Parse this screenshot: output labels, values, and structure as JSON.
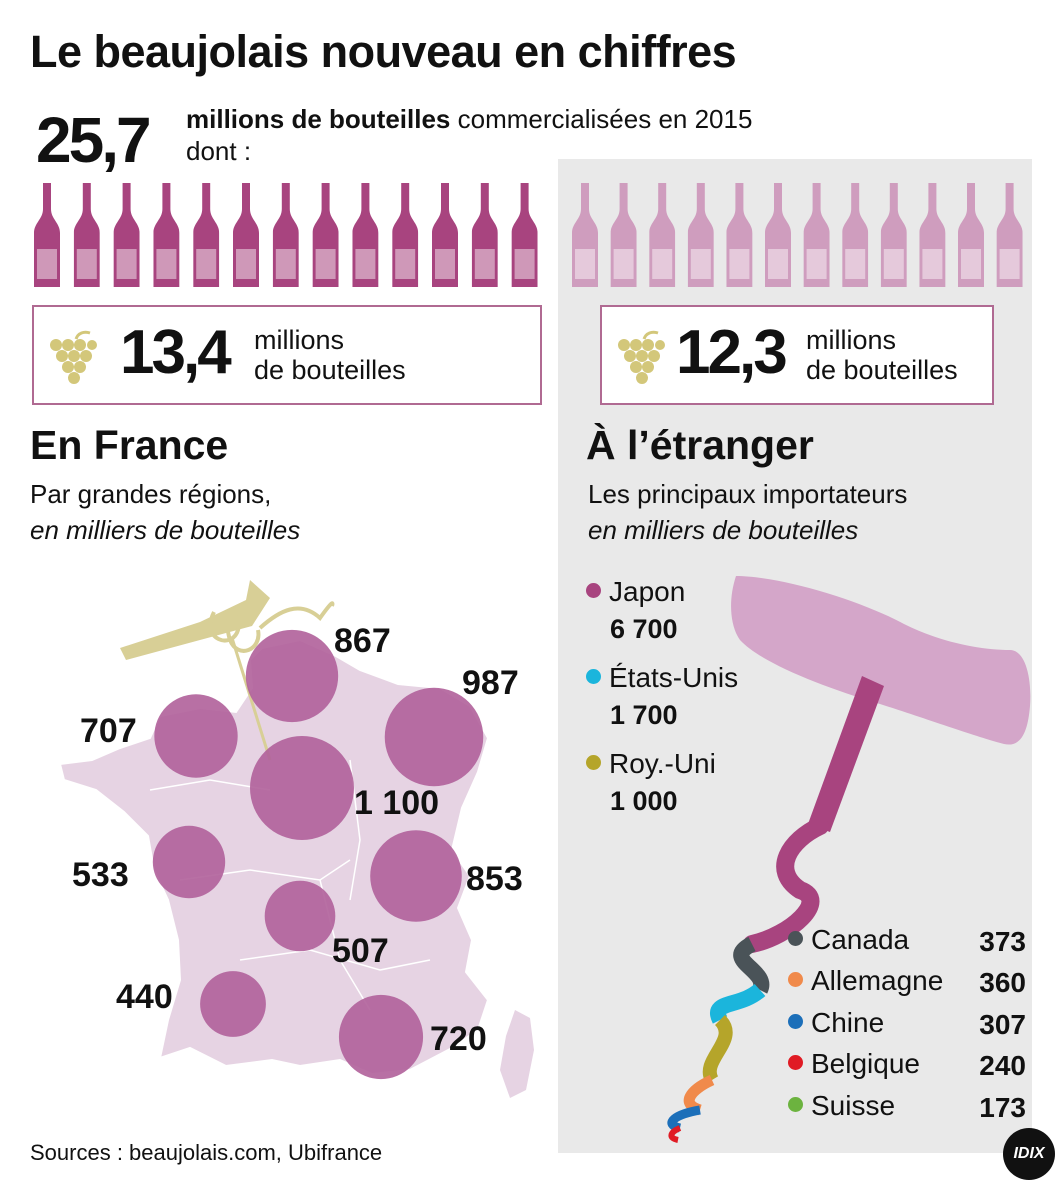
{
  "title": "Le beaujolais nouveau en chiffres",
  "total": {
    "value": "25,7",
    "unit_bold": "millions de bouteilles",
    "unit_rest": " commercialisées en 2015",
    "line2": "dont :"
  },
  "france": {
    "box_value": "13,4",
    "box_unit_1": "millions",
    "box_unit_2": "de bouteilles",
    "title": "En France",
    "subtitle_1": "Par grandes régions,",
    "subtitle_2": "en milliers de bouteilles"
  },
  "abroad": {
    "box_value": "12,3",
    "box_unit_1": "millions",
    "box_unit_2": "de bouteilles",
    "title": "À l’étranger",
    "subtitle_1": "Les principaux importateurs",
    "subtitle_2": "en milliers de bouteilles"
  },
  "colors": {
    "wine": "#a8447f",
    "wine_light": "#cf9dbe",
    "bubble": "#b0609a",
    "map": "#e6d3e3",
    "grape": "#d3c77a",
    "corkscrew_handle": "#d4a6c9"
  },
  "icons": [
    "wine-bottle-icon",
    "grape-icon",
    "corkscrew-icon"
  ],
  "chart_data": [
    {
      "type": "bubble-map",
      "title": "En France",
      "unit": "milliers de bouteilles",
      "values": [
        "867",
        "987",
        "707",
        "1 100",
        "533",
        "853",
        "507",
        "440",
        "720"
      ]
    },
    {
      "type": "bar",
      "title": "À l’étranger",
      "unit": "milliers de bouteilles",
      "main": [
        {
          "name": "Japon",
          "value": "6 700",
          "color": "#a8447f"
        },
        {
          "name": "États-Unis",
          "value": "1 700",
          "color": "#1bb5dc"
        },
        {
          "name": "Roy.-Uni",
          "value": "1 000",
          "color": "#b5a52a"
        }
      ],
      "others": [
        {
          "name": "Canada",
          "value": "373",
          "color": "#4a5358"
        },
        {
          "name": "Allemagne",
          "value": "360",
          "color": "#f08a4b"
        },
        {
          "name": "Chine",
          "value": "307",
          "color": "#1c6fb9"
        },
        {
          "name": "Belgique",
          "value": "240",
          "color": "#e01b24"
        },
        {
          "name": "Suisse",
          "value": "173",
          "color": "#6cb33f"
        }
      ]
    }
  ],
  "sources": "Sources :  beaujolais.com, Ubifrance",
  "logo": "IDIX"
}
